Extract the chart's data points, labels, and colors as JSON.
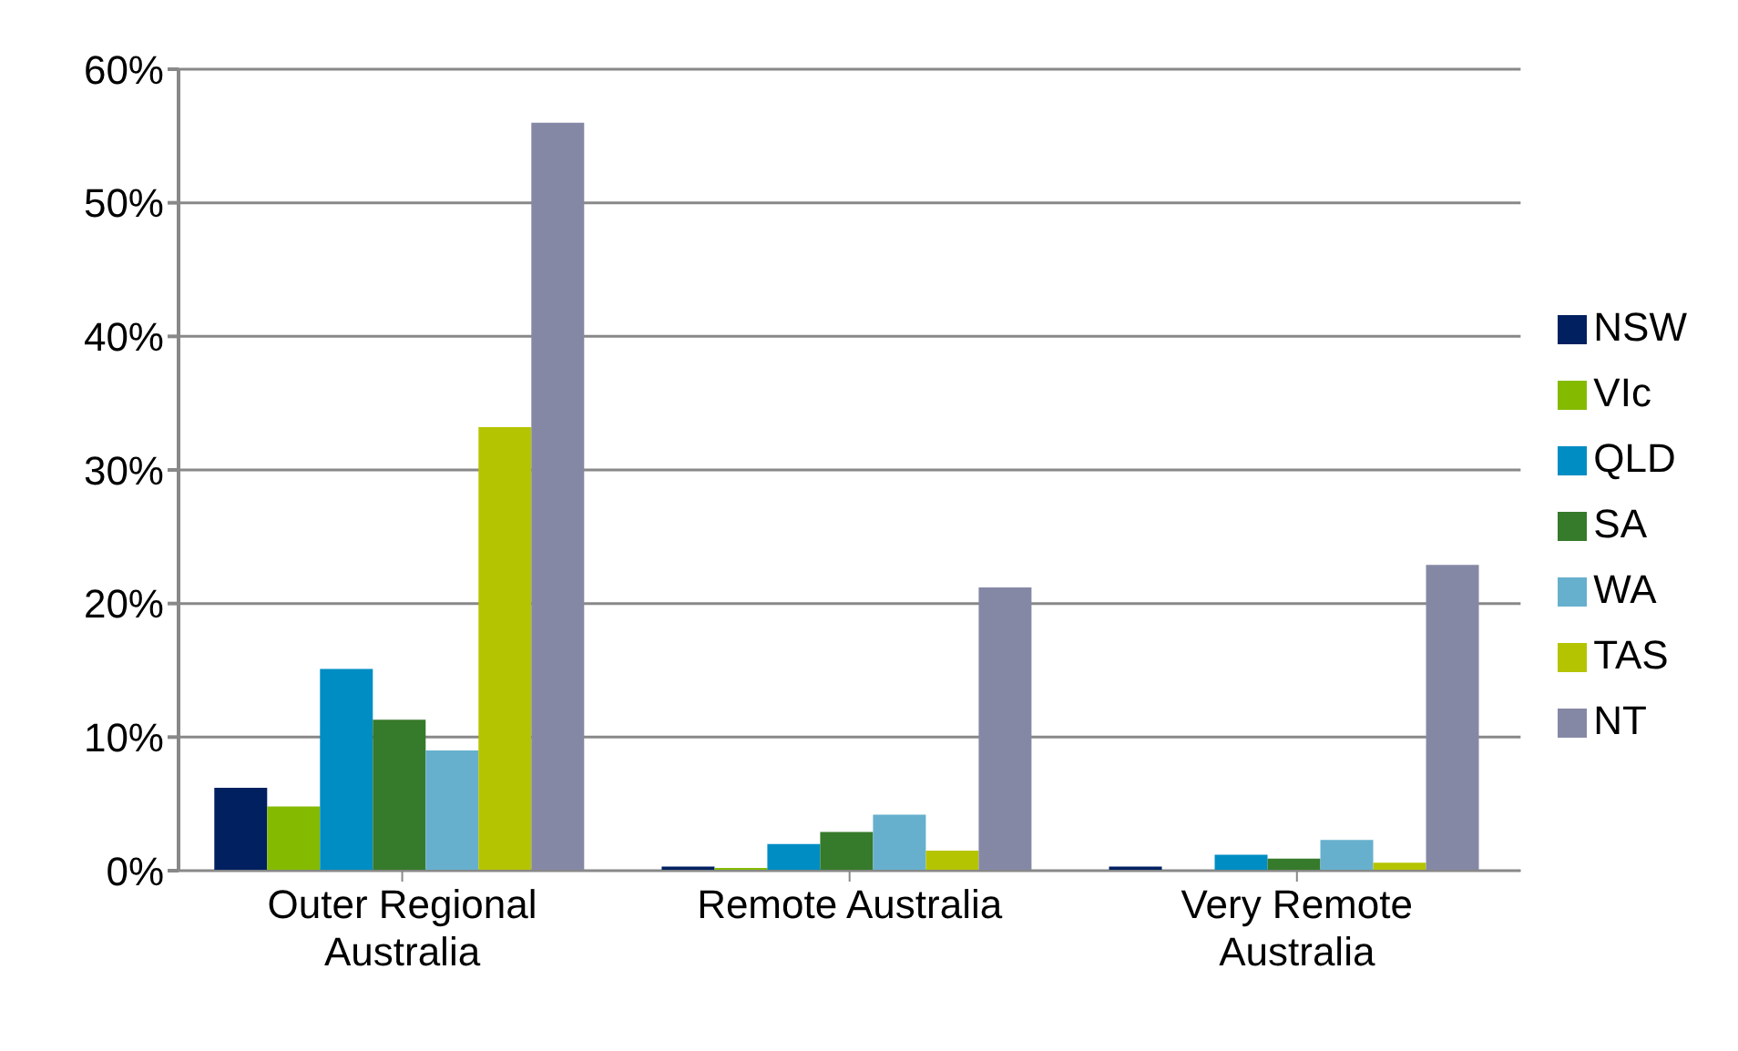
{
  "chart_data": {
    "type": "bar",
    "categories": [
      "Outer Regional Australia",
      "Remote Australia",
      "Very Remote Australia"
    ],
    "series": [
      {
        "name": "NSW",
        "color": "#002060",
        "values": [
          6.2,
          0.3,
          0.3
        ]
      },
      {
        "name": "VIc",
        "color": "#84bb00",
        "values": [
          4.8,
          0.2,
          0
        ]
      },
      {
        "name": "QLD",
        "color": "#008dc3",
        "values": [
          15.1,
          2.0,
          1.2
        ]
      },
      {
        "name": "SA",
        "color": "#367a2b",
        "values": [
          11.3,
          2.9,
          0.9
        ]
      },
      {
        "name": "WA",
        "color": "#66b0cd",
        "values": [
          9.0,
          4.2,
          2.3
        ]
      },
      {
        "name": "TAS",
        "color": "#b5c400",
        "values": [
          33.2,
          1.5,
          0.6
        ]
      },
      {
        "name": "NT",
        "color": "#8588a5",
        "values": [
          56,
          21.2,
          22.9
        ]
      }
    ],
    "ylim": [
      0,
      60
    ],
    "yticks": [
      {
        "value": 0,
        "label": "0%"
      },
      {
        "value": 10,
        "label": "10%"
      },
      {
        "value": 20,
        "label": "20%"
      },
      {
        "value": 30,
        "label": "30%"
      },
      {
        "value": 40,
        "label": "40%"
      },
      {
        "value": 50,
        "label": "50%"
      },
      {
        "value": 60,
        "label": "60%"
      }
    ],
    "grid": "y",
    "legend": "right"
  }
}
